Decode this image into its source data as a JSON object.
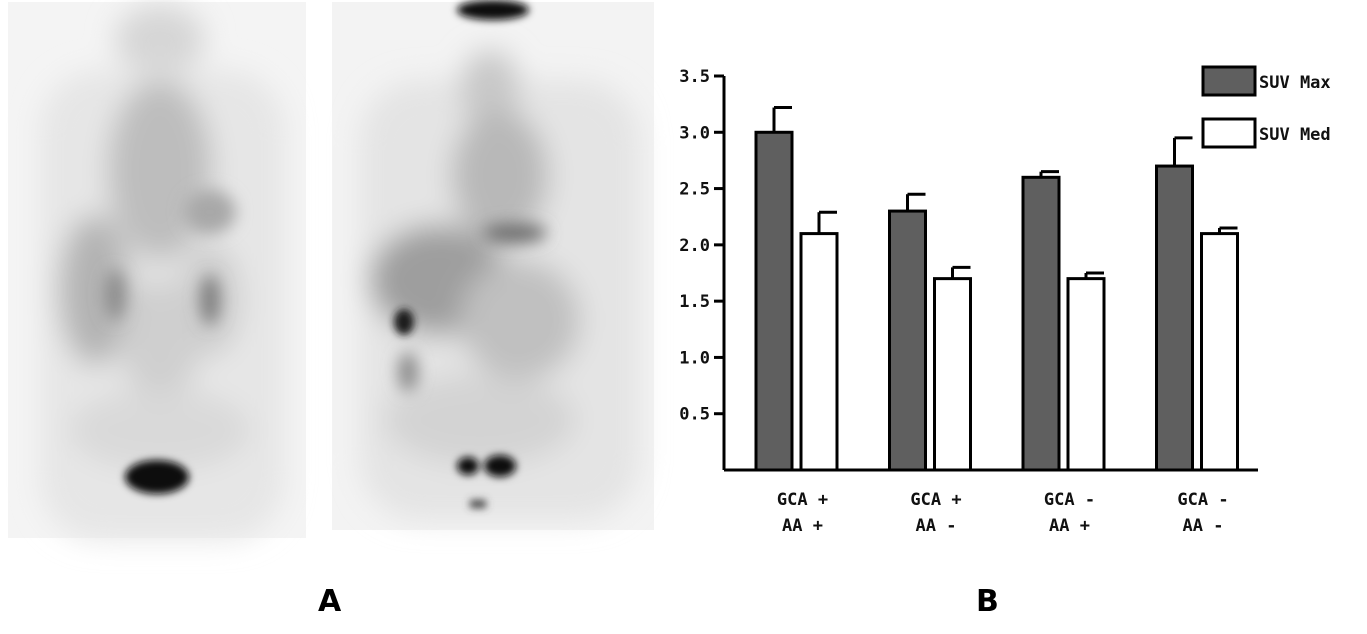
{
  "panels": {
    "a_label": "A",
    "b_label": "B"
  },
  "chart_data": {
    "type": "bar",
    "categories": [
      [
        "GCA +",
        "AA +"
      ],
      [
        "GCA +",
        "AA -"
      ],
      [
        "GCA -",
        "AA +"
      ],
      [
        "GCA -",
        "AA -"
      ]
    ],
    "series": [
      {
        "name": "SUV Max",
        "color": "#5f5f5f",
        "values": [
          3.0,
          2.3,
          2.6,
          2.7
        ],
        "errors": [
          0.22,
          0.15,
          0.05,
          0.25
        ]
      },
      {
        "name": "SUV Med",
        "color": "#ffffff",
        "values": [
          2.1,
          1.7,
          1.7,
          2.1
        ],
        "errors": [
          0.19,
          0.1,
          0.05,
          0.05
        ]
      }
    ],
    "yticks": [
      "0.5",
      "1.0",
      "1.5",
      "2.0",
      "2.5",
      "3.0",
      "3.5"
    ],
    "ylim": [
      0,
      3.5
    ],
    "legend_position": "top-right",
    "grid": false
  }
}
